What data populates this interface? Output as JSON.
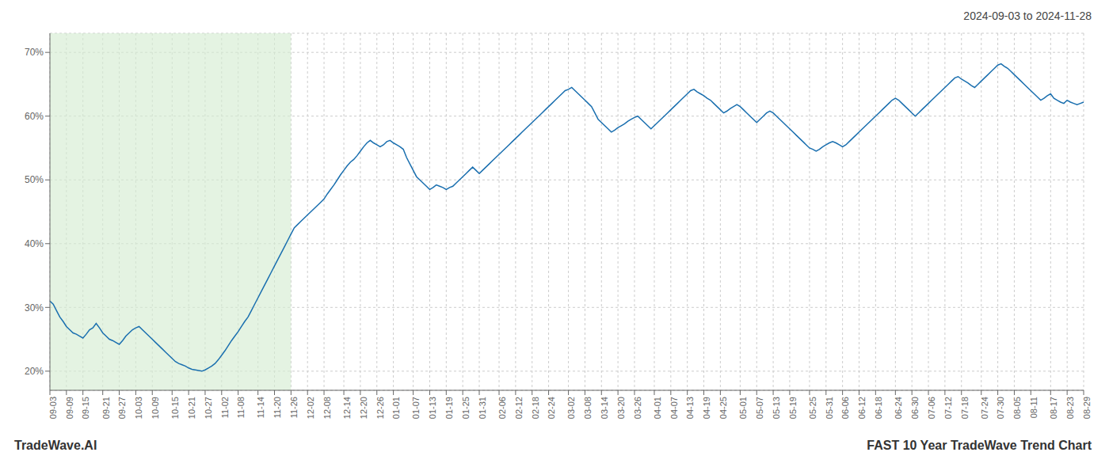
{
  "chart_data": {
    "type": "line",
    "title": "2024-09-03 to 2024-11-28",
    "footer_left": "TradeWave.AI",
    "footer_right": "FAST 10 Year TradeWave Trend Chart",
    "categories": [
      "09-03",
      null,
      null,
      null,
      null,
      "09-09",
      null,
      null,
      null,
      null,
      "09-15",
      null,
      null,
      null,
      null,
      null,
      "09-21",
      null,
      null,
      null,
      null,
      "09-27",
      null,
      null,
      null,
      null,
      "10-03",
      null,
      null,
      null,
      null,
      "10-09",
      null,
      null,
      null,
      null,
      null,
      "10-15",
      null,
      null,
      null,
      null,
      "10-21",
      null,
      null,
      null,
      null,
      "10-27",
      null,
      null,
      null,
      null,
      "11-02",
      null,
      null,
      null,
      null,
      "11-08",
      null,
      null,
      null,
      null,
      null,
      "11-14",
      null,
      null,
      null,
      null,
      "11-20",
      null,
      null,
      null,
      null,
      "11-26",
      null,
      null,
      null,
      null,
      "12-02",
      null,
      null,
      null,
      null,
      "12-08",
      null,
      null,
      null,
      null,
      null,
      "12-14",
      null,
      null,
      null,
      null,
      "12-20",
      null,
      null,
      null,
      null,
      "12-26",
      null,
      null,
      null,
      null,
      "01-01",
      null,
      null,
      null,
      null,
      null,
      "01-07",
      null,
      null,
      null,
      null,
      "01-13",
      null,
      null,
      null,
      null,
      "01-19",
      null,
      null,
      null,
      null,
      "01-25",
      null,
      null,
      null,
      null,
      "01-31",
      null,
      null,
      null,
      null,
      null,
      "02-06",
      null,
      null,
      null,
      null,
      "02-12",
      null,
      null,
      null,
      null,
      "02-18",
      null,
      null,
      null,
      null,
      "02-24",
      null,
      null,
      null,
      null,
      null,
      "03-02",
      null,
      null,
      null,
      null,
      "03-08",
      null,
      null,
      null,
      null,
      "03-14",
      null,
      null,
      null,
      null,
      "03-20",
      null,
      null,
      null,
      null,
      "03-26",
      null,
      null,
      null,
      null,
      null,
      "04-01",
      null,
      null,
      null,
      null,
      "04-07",
      null,
      null,
      null,
      null,
      "04-13",
      null,
      null,
      null,
      null,
      "04-19",
      null,
      null,
      null,
      null,
      "04-25",
      null,
      null,
      null,
      null,
      null,
      "05-01",
      null,
      null,
      null,
      null,
      "05-07",
      null,
      null,
      null,
      null,
      "05-13",
      null,
      null,
      null,
      null,
      "05-19",
      null,
      null,
      null,
      null,
      null,
      "05-25",
      null,
      null,
      null,
      null,
      "05-31",
      null,
      null,
      null,
      null,
      "06-06",
      null,
      null,
      null,
      null,
      "06-12",
      null,
      null,
      null,
      null,
      "06-18",
      null,
      null,
      null,
      null,
      null,
      "06-24",
      null,
      null,
      null,
      null,
      "06-30",
      null,
      null,
      null,
      null,
      "07-06",
      null,
      null,
      null,
      null,
      "07-12",
      null,
      null,
      null,
      null,
      "07-18",
      null,
      null,
      null,
      null,
      null,
      "07-24",
      null,
      null,
      null,
      null,
      "07-30",
      null,
      null,
      null,
      null,
      "08-05",
      null,
      null,
      null,
      null,
      "08-11",
      null,
      null,
      null,
      null,
      null,
      "08-17",
      null,
      null,
      null,
      null,
      "08-23",
      null,
      null,
      null,
      null,
      "08-29"
    ],
    "values": [
      31.0,
      30.5,
      29.5,
      28.5,
      27.8,
      27.0,
      26.5,
      26.0,
      25.8,
      25.5,
      25.2,
      25.8,
      26.5,
      26.8,
      27.5,
      26.8,
      26.0,
      25.5,
      25.0,
      24.8,
      24.5,
      24.2,
      24.8,
      25.5,
      26.0,
      26.5,
      26.8,
      27.0,
      26.5,
      26.0,
      25.5,
      25.0,
      24.5,
      24.0,
      23.5,
      23.0,
      22.5,
      22.0,
      21.5,
      21.2,
      21.0,
      20.8,
      20.5,
      20.3,
      20.2,
      20.1,
      20.0,
      20.2,
      20.5,
      20.8,
      21.2,
      21.8,
      22.5,
      23.2,
      24.0,
      24.8,
      25.5,
      26.2,
      27.0,
      27.8,
      28.5,
      29.5,
      30.5,
      31.5,
      32.5,
      33.5,
      34.5,
      35.5,
      36.5,
      37.5,
      38.5,
      39.5,
      40.5,
      41.5,
      42.5,
      43.0,
      43.5,
      44.0,
      44.5,
      45.0,
      45.5,
      46.0,
      46.5,
      47.0,
      47.8,
      48.5,
      49.2,
      50.0,
      50.8,
      51.5,
      52.2,
      52.8,
      53.2,
      53.8,
      54.5,
      55.2,
      55.8,
      56.2,
      55.8,
      55.5,
      55.2,
      55.5,
      56.0,
      56.2,
      55.8,
      55.5,
      55.2,
      54.8,
      53.5,
      52.5,
      51.5,
      50.5,
      50.0,
      49.5,
      49.0,
      48.5,
      48.8,
      49.2,
      49.0,
      48.8,
      48.5,
      48.8,
      49.0,
      49.5,
      50.0,
      50.5,
      51.0,
      51.5,
      52.0,
      51.5,
      51.0,
      51.5,
      52.0,
      52.5,
      53.0,
      53.5,
      54.0,
      54.5,
      55.0,
      55.5,
      56.0,
      56.5,
      57.0,
      57.5,
      58.0,
      58.5,
      59.0,
      59.5,
      60.0,
      60.5,
      61.0,
      61.5,
      62.0,
      62.5,
      63.0,
      63.5,
      64.0,
      64.2,
      64.5,
      64.0,
      63.5,
      63.0,
      62.5,
      62.0,
      61.5,
      60.5,
      59.5,
      59.0,
      58.5,
      58.0,
      57.5,
      57.8,
      58.2,
      58.5,
      58.8,
      59.2,
      59.5,
      59.8,
      60.0,
      59.5,
      59.0,
      58.5,
      58.0,
      58.5,
      59.0,
      59.5,
      60.0,
      60.5,
      61.0,
      61.5,
      62.0,
      62.5,
      63.0,
      63.5,
      64.0,
      64.2,
      63.8,
      63.5,
      63.2,
      62.8,
      62.5,
      62.0,
      61.5,
      61.0,
      60.5,
      60.8,
      61.2,
      61.5,
      61.8,
      61.5,
      61.0,
      60.5,
      60.0,
      59.5,
      59.0,
      59.5,
      60.0,
      60.5,
      60.8,
      60.5,
      60.0,
      59.5,
      59.0,
      58.5,
      58.0,
      57.5,
      57.0,
      56.5,
      56.0,
      55.5,
      55.0,
      54.8,
      54.5,
      54.8,
      55.2,
      55.5,
      55.8,
      56.0,
      55.8,
      55.5,
      55.2,
      55.5,
      56.0,
      56.5,
      57.0,
      57.5,
      58.0,
      58.5,
      59.0,
      59.5,
      60.0,
      60.5,
      61.0,
      61.5,
      62.0,
      62.5,
      62.8,
      62.5,
      62.0,
      61.5,
      61.0,
      60.5,
      60.0,
      60.5,
      61.0,
      61.5,
      62.0,
      62.5,
      63.0,
      63.5,
      64.0,
      64.5,
      65.0,
      65.5,
      66.0,
      66.2,
      65.8,
      65.5,
      65.2,
      64.8,
      64.5,
      65.0,
      65.5,
      66.0,
      66.5,
      67.0,
      67.5,
      68.0,
      68.2,
      67.8,
      67.5,
      67.0,
      66.5,
      66.0,
      65.5,
      65.0,
      64.5,
      64.0,
      63.5,
      63.0,
      62.5,
      62.8,
      63.2,
      63.5,
      62.8,
      62.5,
      62.2,
      62.0,
      62.5,
      62.2,
      62.0,
      61.8,
      62.0,
      62.2
    ],
    "color": "#1a6faf",
    "ylim": [
      17,
      73
    ],
    "yticks": [
      {
        "value": 20,
        "label": "20%"
      },
      {
        "value": 30,
        "label": "30%"
      },
      {
        "value": 40,
        "label": "40%"
      },
      {
        "value": 50,
        "label": "50%"
      },
      {
        "value": 60,
        "label": "60%"
      },
      {
        "value": 70,
        "label": "70%"
      }
    ],
    "grid": true,
    "span": {
      "start": "09-03",
      "end": "11-26",
      "color": "#d6ecd2"
    }
  }
}
